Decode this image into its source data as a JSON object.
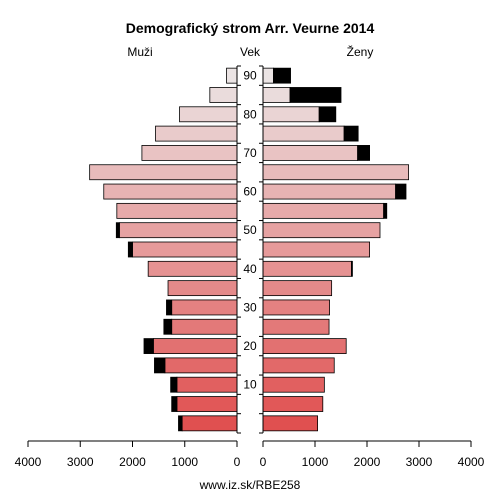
{
  "chart_data": {
    "type": "bar",
    "subtype": "population-pyramid",
    "title": "Demografický strom Arr. Veurne 2014",
    "left_label": "Muži",
    "center_label": "Vek",
    "right_label": "Ženy",
    "source": "www.iz.sk/RBE258",
    "xlim": [
      0,
      4000
    ],
    "x_ticks": [
      "4000",
      "3000",
      "2000",
      "1000",
      "0",
      "0",
      "1000",
      "2000",
      "3000",
      "4000"
    ],
    "age_groups": [
      "0-4",
      "5-9",
      "10-14",
      "15-19",
      "20-24",
      "25-29",
      "30-34",
      "35-39",
      "40-44",
      "45-49",
      "50-54",
      "55-59",
      "60-64",
      "65-69",
      "70-74",
      "75-79",
      "80-84",
      "85-89",
      "90+"
    ],
    "age_tick_labels": [
      "10",
      "20",
      "30",
      "40",
      "50",
      "60",
      "70",
      "80",
      "90"
    ],
    "series": [
      {
        "name": "Muži",
        "values": [
          1050,
          1150,
          1150,
          1380,
          1600,
          1250,
          1250,
          1320,
          1700,
          2000,
          2250,
          2300,
          2550,
          2820,
          1820,
          1560,
          1100,
          520,
          200
        ],
        "excess": [
          70,
          100,
          120,
          200,
          180,
          150,
          100,
          0,
          0,
          80,
          60,
          0,
          0,
          0,
          0,
          0,
          0,
          0,
          0
        ]
      },
      {
        "name": "Ženy",
        "values": [
          1050,
          1150,
          1180,
          1370,
          1600,
          1270,
          1280,
          1320,
          1700,
          2050,
          2250,
          2320,
          2550,
          2800,
          1820,
          1560,
          1080,
          520,
          200
        ],
        "excess": [
          0,
          0,
          0,
          0,
          0,
          0,
          0,
          0,
          20,
          0,
          0,
          60,
          200,
          0,
          230,
          270,
          320,
          980,
          330
        ]
      }
    ],
    "colors": {
      "bar_gradient_young": "#e05050",
      "bar_gradient_old": "#ebe4e4",
      "excess": "#000000",
      "outline": "#000000"
    },
    "grid": false,
    "legend": "none"
  }
}
